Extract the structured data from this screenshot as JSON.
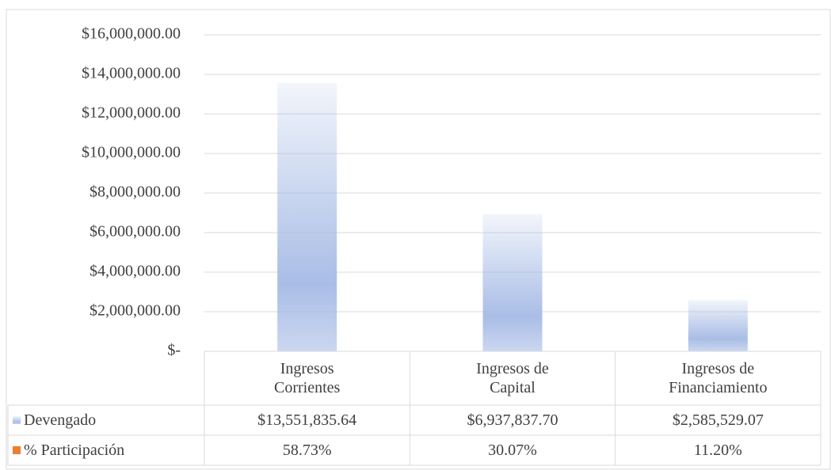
{
  "chart_data": {
    "type": "bar",
    "categories": [
      "Ingresos Corrientes",
      "Ingresos de Capital",
      "Ingresos de Financiamiento"
    ],
    "series": [
      {
        "name": "Devengado",
        "color": "#a9bde6",
        "values": [
          13551835.64,
          6937837.7,
          2585529.07
        ],
        "value_labels": [
          "$13,551,835.64",
          "$6,937,837.70",
          "$2,585,529.07"
        ]
      },
      {
        "name": "% Participación",
        "color": "#ed7d31",
        "values": [
          58.73,
          30.07,
          11.2
        ],
        "value_labels": [
          "58.73%",
          "30.07%",
          "11.20%"
        ]
      }
    ],
    "ylim": [
      0,
      16000000
    ],
    "yticks": [
      {
        "value": 0,
        "label": "$-"
      },
      {
        "value": 2000000,
        "label": "$2,000,000.00"
      },
      {
        "value": 4000000,
        "label": "$4,000,000.00"
      },
      {
        "value": 6000000,
        "label": "$6,000,000.00"
      },
      {
        "value": 8000000,
        "label": "$8,000,000.00"
      },
      {
        "value": 10000000,
        "label": "$10,000,000.00"
      },
      {
        "value": 12000000,
        "label": "$12,000,000.00"
      },
      {
        "value": 14000000,
        "label": "$14,000,000.00"
      },
      {
        "value": 16000000,
        "label": "$16,000,000.00"
      }
    ],
    "grid": true,
    "data_table": true
  }
}
